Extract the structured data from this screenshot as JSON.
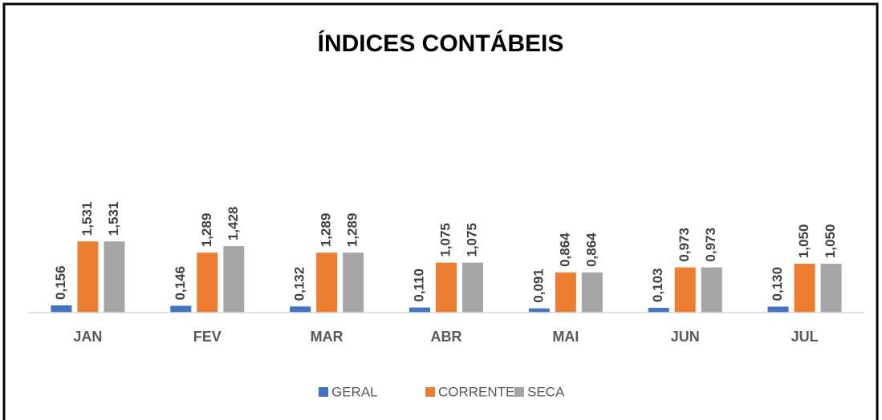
{
  "chart_data": {
    "type": "bar",
    "title": "ÍNDICES CONTÁBEIS",
    "categories": [
      "JAN",
      "FEV",
      "MAR",
      "ABR",
      "MAI",
      "JUN",
      "JUL"
    ],
    "series": [
      {
        "name": "GERAL",
        "color": "#4472c4",
        "values": [
          0.156,
          0.146,
          0.132,
          0.11,
          0.091,
          0.103,
          0.13
        ],
        "value_labels": [
          "0,156",
          "0,146",
          "0,132",
          "0,110",
          "0,091",
          "0,103",
          "0,130"
        ]
      },
      {
        "name": "CORRENTE",
        "color": "#ed7d31",
        "values": [
          1.531,
          1.289,
          1.289,
          1.075,
          0.864,
          0.973,
          1.05
        ],
        "value_labels": [
          "1,531",
          "1,289",
          "1,289",
          "1,075",
          "0,864",
          "0,973",
          "1,050"
        ]
      },
      {
        "name": "SECA",
        "color": "#a5a5a5",
        "values": [
          1.531,
          1.428,
          1.289,
          1.075,
          0.864,
          0.973,
          1.05
        ],
        "value_labels": [
          "1,531",
          "1,428",
          "1,289",
          "1,075",
          "0,864",
          "0,973",
          "1,050"
        ]
      }
    ],
    "ylim": [
      0,
      6
    ],
    "legend": "bottom"
  }
}
